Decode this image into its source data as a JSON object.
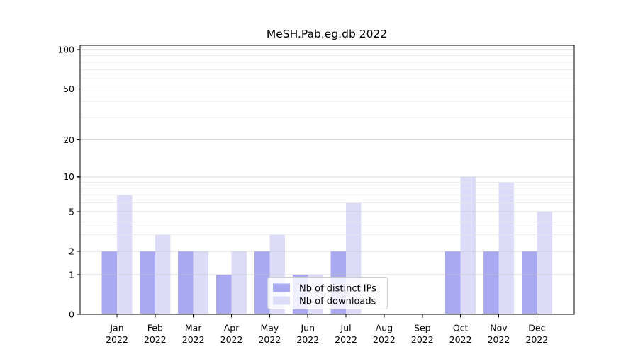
{
  "figure": {
    "title": "MeSH.Pab.eg.db 2022"
  },
  "chart_data": {
    "type": "bar",
    "title": "MeSH.Pab.eg.db 2022",
    "categories": [
      "Jan 2022",
      "Feb 2022",
      "Mar 2022",
      "Apr 2022",
      "May 2022",
      "Jun 2022",
      "Jul 2022",
      "Aug 2022",
      "Sep 2022",
      "Oct 2022",
      "Nov 2022",
      "Dec 2022"
    ],
    "series": [
      {
        "name": "Nb of distinct IPs",
        "color": "#a9a9f2",
        "values": [
          2,
          2,
          2,
          1,
          2,
          1,
          2,
          0,
          0,
          2,
          2,
          2
        ]
      },
      {
        "name": "Nb of downloads",
        "color": "#dcdcf9",
        "values": [
          7,
          3,
          2,
          2,
          3,
          1,
          6,
          0,
          0,
          10,
          9,
          5
        ]
      }
    ],
    "xlabel": "",
    "ylabel": "",
    "yscale": "log1p",
    "ylim": [
      0,
      108
    ],
    "yticks": [
      0,
      1,
      2,
      5,
      10,
      20,
      50,
      100
    ],
    "yticks_minor": [
      3,
      4,
      6,
      7,
      8,
      9,
      30,
      40,
      60,
      70,
      80,
      90
    ],
    "grid": true,
    "legend_position": "lower center"
  },
  "style": {
    "bar_series1": "#a9a9f2",
    "bar_series2": "#dcdcf9",
    "grid_major": "#bfbfbf",
    "grid_minor": "#e6e6e6",
    "axis_color": "#000000",
    "text_color": "#000000",
    "legend_border": "#cccccc"
  }
}
